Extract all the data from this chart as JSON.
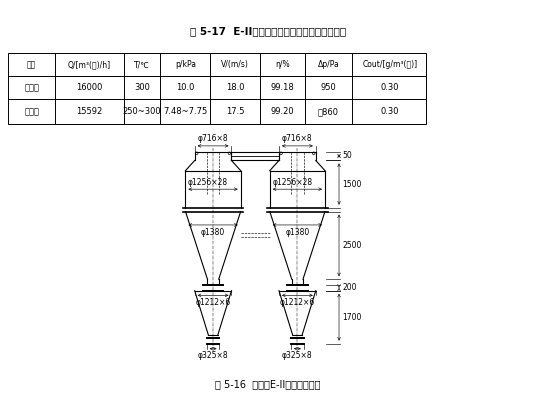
{
  "title": "表 5-17  E-II型旋風除塵器計算值與實測值比較",
  "col_headers": [
    "項目",
    "Q/[m³(标)/h]",
    "T/℃",
    "p/kPa",
    "V/(m/s)",
    "η/%",
    "Δp/Pa",
    "Cout/[g/m³(标)]"
  ],
  "row1_label": "計算值",
  "row2_label": "實測值",
  "row1_data": [
    "16000",
    "300",
    "10.0",
    "18.0",
    "99.18",
    "950",
    "0.30"
  ],
  "row2_data": [
    "15592",
    "250~300",
    "7.48~7.75",
    "17.5",
    "99.20",
    "約860",
    "0.30"
  ],
  "fig_caption": "圖 5-16  造氣爐E-II型旋風除塵器",
  "dim_50": "50",
  "dim_1500": "1500",
  "dim_2500": "2500",
  "dim_200": "200",
  "dim_1700": "1700",
  "label_716": "φ716×8",
  "label_1256": "φ1256×28",
  "label_1380": "φ1380",
  "label_1212": "φ1212×6",
  "label_325": "φ325×8",
  "bg_color": "#ffffff",
  "lc": "#000000"
}
